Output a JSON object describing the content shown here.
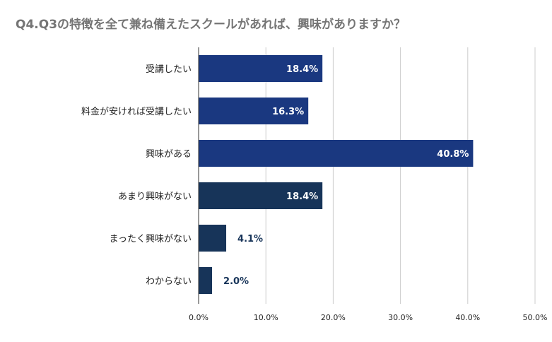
{
  "chart_data": {
    "type": "bar",
    "orientation": "horizontal",
    "title": "Q4.Q3の特徴を全て兼ね備えたスクールがあれば、興味がありますか？",
    "categories": [
      "受講したい",
      "料金が安ければ受講したい",
      "興味がある",
      "あまり興味がない",
      "まったく興味がない",
      "わからない"
    ],
    "values": [
      18.4,
      16.3,
      40.8,
      18.4,
      4.1,
      2.0
    ],
    "value_labels": [
      "18.4%",
      "16.3%",
      "40.8%",
      "18.4%",
      "4.1%",
      "2.0%"
    ],
    "bar_colors": [
      "#1a3880",
      "#1a3880",
      "#1a3880",
      "#173459",
      "#173459",
      "#173459"
    ],
    "xlim": [
      0,
      50
    ],
    "xticks": [
      0,
      10,
      20,
      30,
      40,
      50
    ],
    "xtick_labels": [
      "0.0%",
      "10.0%",
      "20.0%",
      "30.0%",
      "40.0%",
      "50.0%"
    ],
    "grid": true,
    "title_color": "#757575",
    "grid_color": "#cccccc",
    "inside_label_color": "#ffffff",
    "outside_label_color": "#173459"
  }
}
